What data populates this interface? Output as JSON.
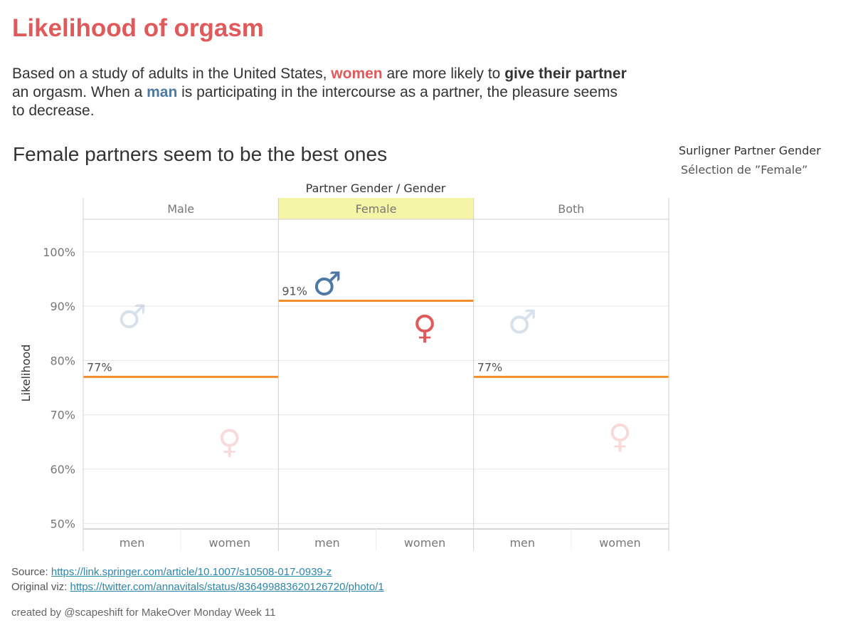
{
  "page": {
    "title": "Likelihood of orgasm",
    "intro": {
      "p1": "Based on a study of adults in the United States, ",
      "women": "women",
      "p2": " are more likely to ",
      "bold1": "give their partner",
      "p3": " an orgasm. When a ",
      "man": "man",
      "p4": " is participating in the intercourse as a partner,  the pleasure seems to decrease."
    },
    "subtitle": "Female partners seem to be the best ones",
    "legend": {
      "title": "Surligner Partner Gender",
      "selection": "Sélection de ”Female”"
    },
    "source_label": "Source: ",
    "source_link": "https://link.springer.com/article/10.1007/s10508-017-0939-z",
    "original_label": "Original viz: ",
    "original_link": "https://twitter.com/annavitals/status/836499883620126720/photo/1",
    "credit": "created by @scapeshift for MakeOver Monday Week 11"
  },
  "colors": {
    "men": "#4e79a7",
    "women": "#e05a5c",
    "reference_line": "#f28e2b",
    "highlight": "#f5f5a8"
  },
  "chart_data": {
    "type": "scatter",
    "header_title": "Partner Gender  /  Gender",
    "ylabel": "Likelihood",
    "ylim": [
      49,
      106
    ],
    "yticks": [
      50,
      60,
      70,
      80,
      90,
      100
    ],
    "ytick_labels": [
      "50%",
      "60%",
      "70%",
      "80%",
      "90%",
      "100%"
    ],
    "highlighted_panel": "Female",
    "panels": [
      {
        "name": "Male",
        "reference": 77,
        "reference_label": "77%",
        "points": [
          {
            "category": "men",
            "value": 88,
            "symbol": "♂"
          },
          {
            "category": "women",
            "value": 65,
            "symbol": "♀"
          }
        ]
      },
      {
        "name": "Female",
        "reference": 91,
        "reference_label": "91%",
        "points": [
          {
            "category": "men",
            "value": 94,
            "symbol": "♂"
          },
          {
            "category": "women",
            "value": 86,
            "symbol": "♀"
          }
        ]
      },
      {
        "name": "Both",
        "reference": 77,
        "reference_label": "77%",
        "points": [
          {
            "category": "men",
            "value": 87,
            "symbol": "♂"
          },
          {
            "category": "women",
            "value": 66,
            "symbol": "♀"
          }
        ]
      }
    ]
  }
}
